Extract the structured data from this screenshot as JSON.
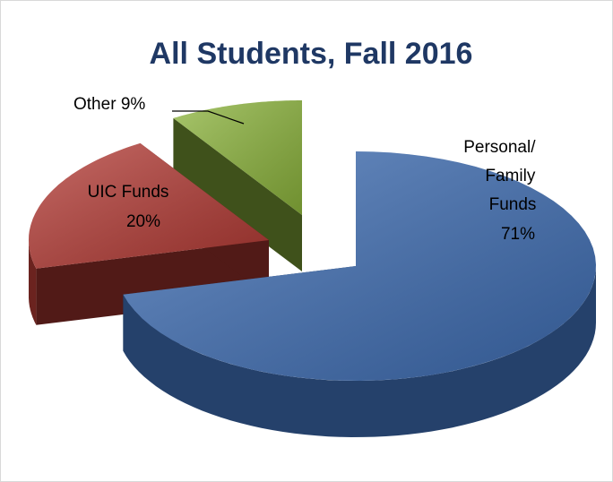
{
  "chart_data": {
    "type": "pie3d",
    "title": "All Students, Fall 2016",
    "categories": [
      "Personal/ Family Funds",
      "UIC Funds",
      "Other"
    ],
    "values": [
      71,
      20,
      9
    ],
    "value_labels": [
      "71%",
      "20%",
      "9%"
    ],
    "colors": [
      "#3e6db3",
      "#b33a34",
      "#8cb43c"
    ]
  }
}
